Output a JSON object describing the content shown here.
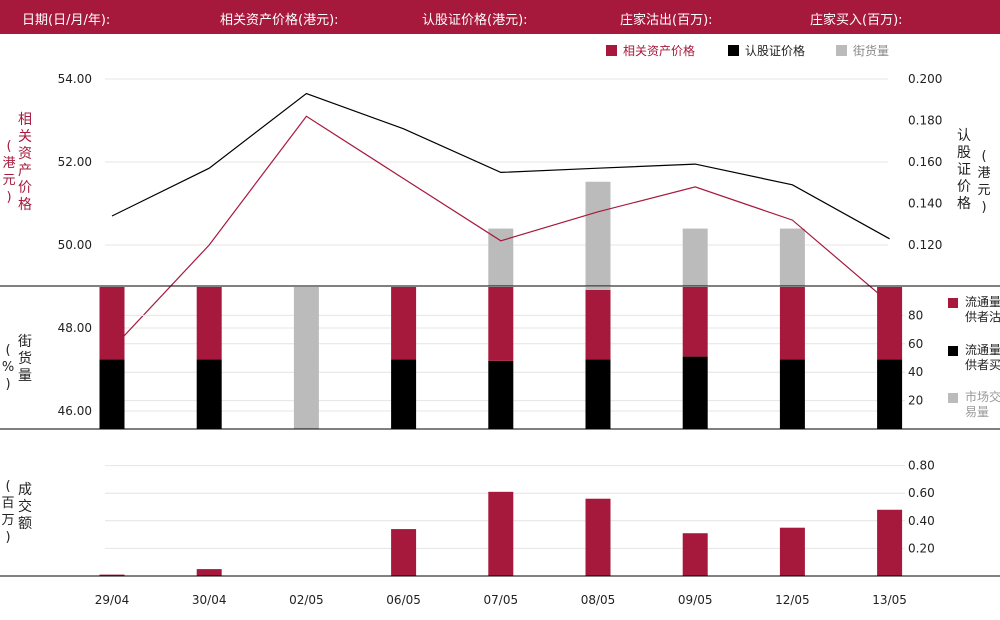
{
  "header": {
    "date_label": "日期(日/月/年):",
    "underlying_label": "相关资产价格(港元):",
    "warrant_label": "认股证价格(港元):",
    "mm_sell_label": "庄家沽出(百万):",
    "mm_buy_label": "庄家买入(百万):"
  },
  "legend": {
    "underlying": "相关资产价格",
    "warrant": "认股证价格",
    "street": "街货量"
  },
  "axis_titles": {
    "left_top": "相关资产价格",
    "left_top_unit": "(港元)",
    "right_top": "认股证价格",
    "right_top_unit": "(港元)",
    "left_mid": "街货量",
    "left_mid_unit": "(%)",
    "left_bot": "成交额",
    "left_bot_unit": "(百万)"
  },
  "right_legend": {
    "mm_sell": "流通量提供者沽出",
    "mm_buy": "流通量提供者买入",
    "market": "市场交易量"
  },
  "colors": {
    "brand": "#a6193c",
    "black": "#000000",
    "grey": "#bbbbbb",
    "legend_grey": "#999999"
  },
  "chart_data": [
    {
      "type": "line",
      "categories": [
        "29/04",
        "30/04",
        "02/05",
        "06/05",
        "07/05",
        "08/05",
        "09/05",
        "12/05",
        "13/05"
      ],
      "series": [
        {
          "name": "相关资产价格",
          "axis": "left",
          "color": "#a6193c",
          "values": [
            47.5,
            50.0,
            53.1,
            51.6,
            50.1,
            50.8,
            51.4,
            50.6,
            48.6
          ]
        },
        {
          "name": "认股证价格",
          "axis": "right",
          "color": "#000000",
          "values": [
            0.134,
            0.157,
            0.193,
            0.176,
            0.155,
            0.157,
            0.159,
            0.149,
            0.123
          ]
        }
      ],
      "left_ticks": [
        "54.00",
        "52.00",
        "50.00",
        "48.00",
        "46.00"
      ],
      "left_tick_values": [
        54,
        52,
        50,
        48,
        46
      ],
      "right_ticks": [
        "0.200",
        "0.180",
        "0.160",
        "0.140",
        "0.120"
      ],
      "right_tick_values": [
        0.2,
        0.18,
        0.16,
        0.14,
        0.12
      ],
      "street_bars": {
        "name": "街货量",
        "values": [
          0,
          0,
          0,
          0,
          0.38,
          0.69,
          0.38,
          0.38,
          0
        ]
      }
    },
    {
      "type": "bar",
      "stacked": true,
      "categories": [
        "29/04",
        "30/04",
        "02/05",
        "06/05",
        "07/05",
        "08/05",
        "09/05",
        "12/05",
        "13/05"
      ],
      "series": [
        {
          "name": "流通量提供者买入",
          "color": "#000000",
          "values": [
            49,
            49,
            0,
            49,
            48,
            49,
            51,
            49,
            49
          ]
        },
        {
          "name": "流通量提供者沽出",
          "color": "#a6193c",
          "values": [
            51,
            51,
            0,
            51,
            52,
            49,
            49,
            51,
            51
          ]
        },
        {
          "name": "市场交易量",
          "color": "#bbbbbb",
          "values": [
            0,
            0,
            100,
            0,
            0,
            2,
            0,
            0,
            0
          ]
        }
      ],
      "y_ticks": [
        "80",
        "60",
        "40",
        "20"
      ],
      "y_tick_values": [
        80,
        60,
        40,
        20
      ],
      "ylim": [
        0,
        100
      ]
    },
    {
      "type": "bar",
      "categories": [
        "29/04",
        "30/04",
        "02/05",
        "06/05",
        "07/05",
        "08/05",
        "09/05",
        "12/05",
        "13/05"
      ],
      "values": [
        0.01,
        0.05,
        0,
        0.34,
        0.61,
        0.56,
        0.31,
        0.35,
        0.48
      ],
      "y_ticks": [
        "0.80",
        "0.60",
        "0.40",
        "0.20"
      ],
      "y_tick_values": [
        0.8,
        0.6,
        0.4,
        0.2
      ],
      "ylim": [
        0,
        0.8
      ]
    }
  ]
}
